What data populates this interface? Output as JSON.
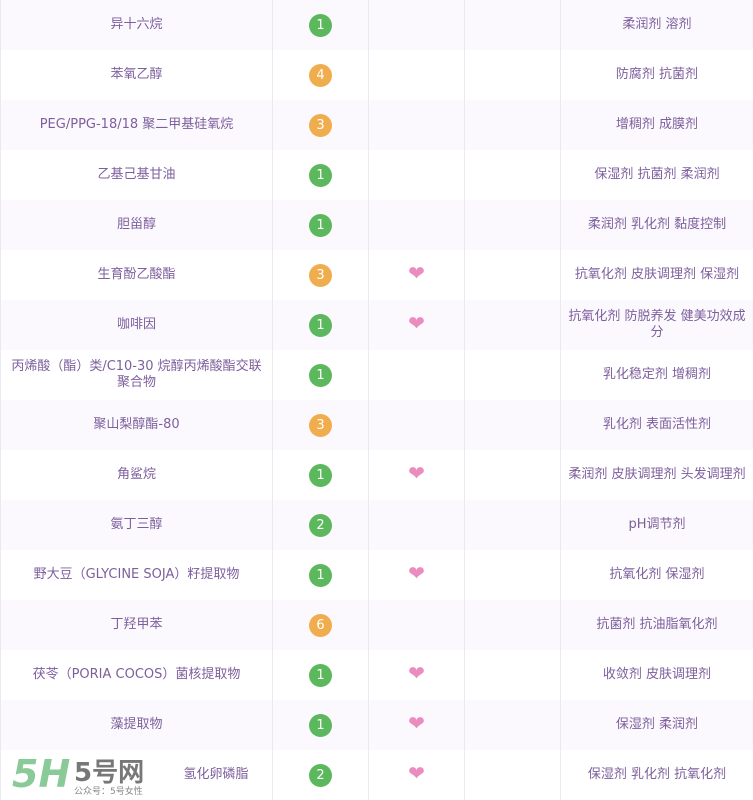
{
  "colors": {
    "safe": "#5cb85c",
    "warn": "#f0ad4e",
    "heart": "#ea8cbf",
    "text": "#7d5f9c"
  },
  "rows": [
    {
      "name": "异十六烷",
      "score": "1",
      "level": "safe",
      "active": false,
      "func": "柔润剂 溶剂"
    },
    {
      "name": "苯氧乙醇",
      "score": "4",
      "level": "warn",
      "active": false,
      "func": "防腐剂 抗菌剂"
    },
    {
      "name": "PEG/PPG-18/18 聚二甲基硅氧烷",
      "score": "3",
      "level": "warn",
      "active": false,
      "func": "增稠剂 成膜剂"
    },
    {
      "name": "乙基己基甘油",
      "score": "1",
      "level": "safe",
      "active": false,
      "func": "保湿剂 抗菌剂 柔润剂"
    },
    {
      "name": "胆甾醇",
      "score": "1",
      "level": "safe",
      "active": false,
      "func": "柔润剂 乳化剂 黏度控制"
    },
    {
      "name": "生育酚乙酸酯",
      "score": "3",
      "level": "warn",
      "active": true,
      "func": "抗氧化剂 皮肤调理剂 保湿剂"
    },
    {
      "name": "咖啡因",
      "score": "1",
      "level": "safe",
      "active": true,
      "func": "抗氧化剂 防脱养发 健美功效成分"
    },
    {
      "name": "丙烯酸（酯）类/C10-30 烷醇丙烯酸酯交联聚合物",
      "score": "1",
      "level": "safe",
      "active": false,
      "func": "乳化稳定剂 增稠剂"
    },
    {
      "name": "聚山梨醇酯-80",
      "score": "3",
      "level": "warn",
      "active": false,
      "func": "乳化剂 表面活性剂"
    },
    {
      "name": "角鲨烷",
      "score": "1",
      "level": "safe",
      "active": true,
      "func": "柔润剂 皮肤调理剂 头发调理剂"
    },
    {
      "name": "氨丁三醇",
      "score": "2",
      "level": "safe",
      "active": false,
      "func": "pH调节剂"
    },
    {
      "name": "野大豆（GLYCINE SOJA）籽提取物",
      "score": "1",
      "level": "safe",
      "active": true,
      "func": "抗氧化剂 保湿剂"
    },
    {
      "name": "丁羟甲苯",
      "score": "6",
      "level": "warn",
      "active": false,
      "func": "抗菌剂 抗油脂氧化剂"
    },
    {
      "name": "茯苓（PORIA COCOS）菌核提取物",
      "score": "1",
      "level": "safe",
      "active": true,
      "func": "收敛剂 皮肤调理剂"
    },
    {
      "name": "藻提取物",
      "score": "1",
      "level": "safe",
      "active": true,
      "func": "保湿剂 柔润剂"
    },
    {
      "name": "氢化卵磷脂",
      "score": "2",
      "level": "safe",
      "active": true,
      "func": "保湿剂 乳化剂 抗氧化剂"
    }
  ],
  "watermark": {
    "logo": "5H",
    "brand": "5号网",
    "sub": "公众号：5号女性"
  }
}
